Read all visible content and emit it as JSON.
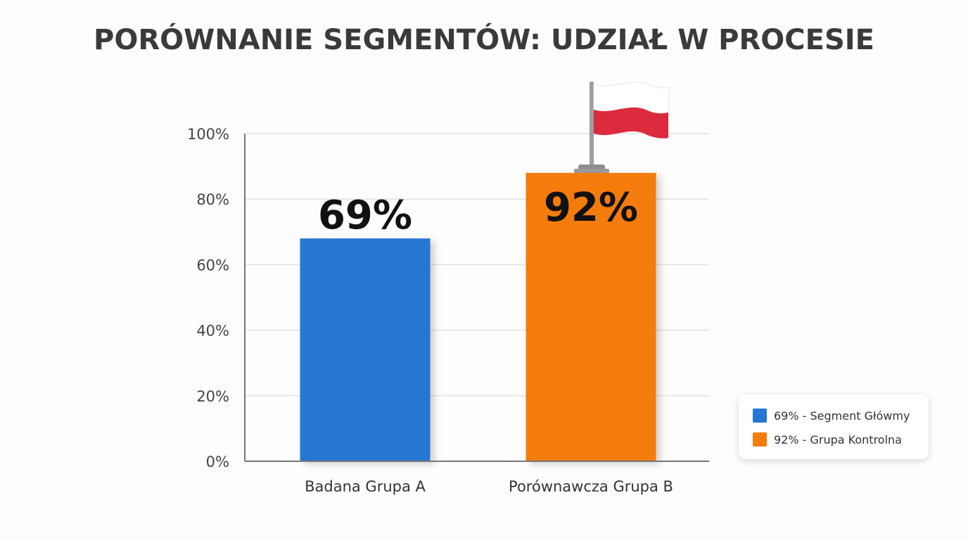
{
  "chart_data": {
    "type": "bar",
    "title": "PORÓWNANIE SEGMENTÓW: UDZIAŁ W PROCESIE",
    "xlabel": "",
    "ylabel": "",
    "categories": [
      "Badana Grupa A",
      "Porównawcza Grupa B"
    ],
    "values": [
      69,
      92
    ],
    "bar_heights_shown": [
      68,
      88
    ],
    "data_labels": [
      "69%",
      "92%"
    ],
    "ylim": [
      0,
      100
    ],
    "yticks": [
      0,
      20,
      40,
      60,
      80,
      100
    ],
    "ytick_labels": [
      "0%",
      "20%",
      "40%",
      "60%",
      "80%",
      "100%"
    ],
    "grid": true,
    "legend": {
      "placement": "bottom-right",
      "entries": [
        "69% - Segment Główmy",
        "92% - Grupa Kontrolna"
      ]
    },
    "colors": [
      "#2677d1",
      "#f47c0b"
    ],
    "flag_icon": "poland-flag-icon",
    "flag_colors": [
      "#ffffff",
      "#dc2a3f"
    ]
  }
}
